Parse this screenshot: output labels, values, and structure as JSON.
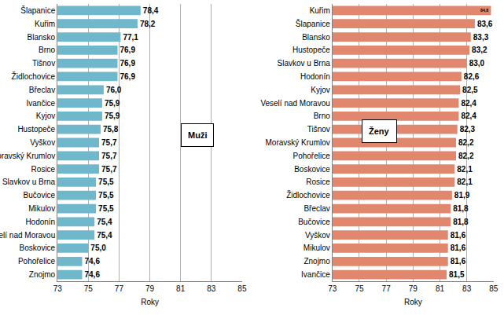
{
  "chart_data": [
    {
      "type": "bar",
      "title": "Muži",
      "orientation": "horizontal",
      "color": "#6fb7cb",
      "xlabel": "Roky",
      "grid": true,
      "data_labels": true,
      "xlim": [
        73,
        85
      ],
      "xticks": [
        73,
        75,
        77,
        79,
        81,
        83,
        85
      ],
      "categories": [
        "Šlapanice",
        "Kuřim",
        "Blansko",
        "Brno",
        "Tišnov",
        "Židlochovice",
        "Břeclav",
        "Ivančice",
        "Kyjov",
        "Hustopeče",
        "Vyškov",
        "Moravský Krumlov",
        "Rosice",
        "Slavkov u Brna",
        "Bučovice",
        "Mikulov",
        "Hodonín",
        "Veselí nad Moravou",
        "Boskovice",
        "Pohořelice",
        "Znojmo"
      ],
      "values": [
        78.4,
        78.2,
        77.1,
        76.9,
        76.9,
        76.9,
        76.0,
        75.9,
        75.9,
        75.8,
        75.7,
        75.7,
        75.7,
        75.5,
        75.5,
        75.5,
        75.4,
        75.4,
        75.0,
        74.6,
        74.6
      ],
      "value_labels": [
        "78,4",
        "78,2",
        "77,1",
        "76,9",
        "76,9",
        "76,9",
        "76,0",
        "75,9",
        "75,9",
        "75,8",
        "75,7",
        "75,7",
        "75,7",
        "75,5",
        "75,5",
        "75,5",
        "75,4",
        "75,4",
        "75,0",
        "74,6",
        "74,6"
      ]
    },
    {
      "type": "bar",
      "title": "Ženy",
      "orientation": "horizontal",
      "color": "#e0876d",
      "xlabel": "Roky",
      "grid": true,
      "data_labels": true,
      "xlim": [
        73,
        85
      ],
      "xticks": [
        73,
        75,
        77,
        79,
        81,
        83,
        85
      ],
      "categories": [
        "Kuřim",
        "Šlapanice",
        "Blansko",
        "Hustopeče",
        "Slavkov u Brna",
        "Hodonín",
        "Kyjov",
        "Veselí nad Moravou",
        "Brno",
        "Tišnov",
        "Moravský Krumlov",
        "Pohořelice",
        "Boskovice",
        "Rosice",
        "Židlochovice",
        "Břeclav",
        "Bučovice",
        "Vyškov",
        "Mikulov",
        "Znojmo",
        "Ivančice"
      ],
      "values": [
        84.8,
        83.6,
        83.3,
        83.2,
        83.0,
        82.6,
        82.5,
        82.4,
        82.4,
        82.3,
        82.2,
        82.2,
        82.1,
        82.1,
        81.9,
        81.8,
        81.8,
        81.6,
        81.6,
        81.6,
        81.5
      ],
      "value_labels": [
        "84,8",
        "83,6",
        "83,3",
        "83,2",
        "83,0",
        "82,6",
        "82,5",
        "82,4",
        "82,4",
        "82,3",
        "82,2",
        "82,2",
        "82,1",
        "82,1",
        "81,9",
        "81,8",
        "81,8",
        "81,6",
        "81,6",
        "81,6",
        "81,5"
      ]
    }
  ]
}
